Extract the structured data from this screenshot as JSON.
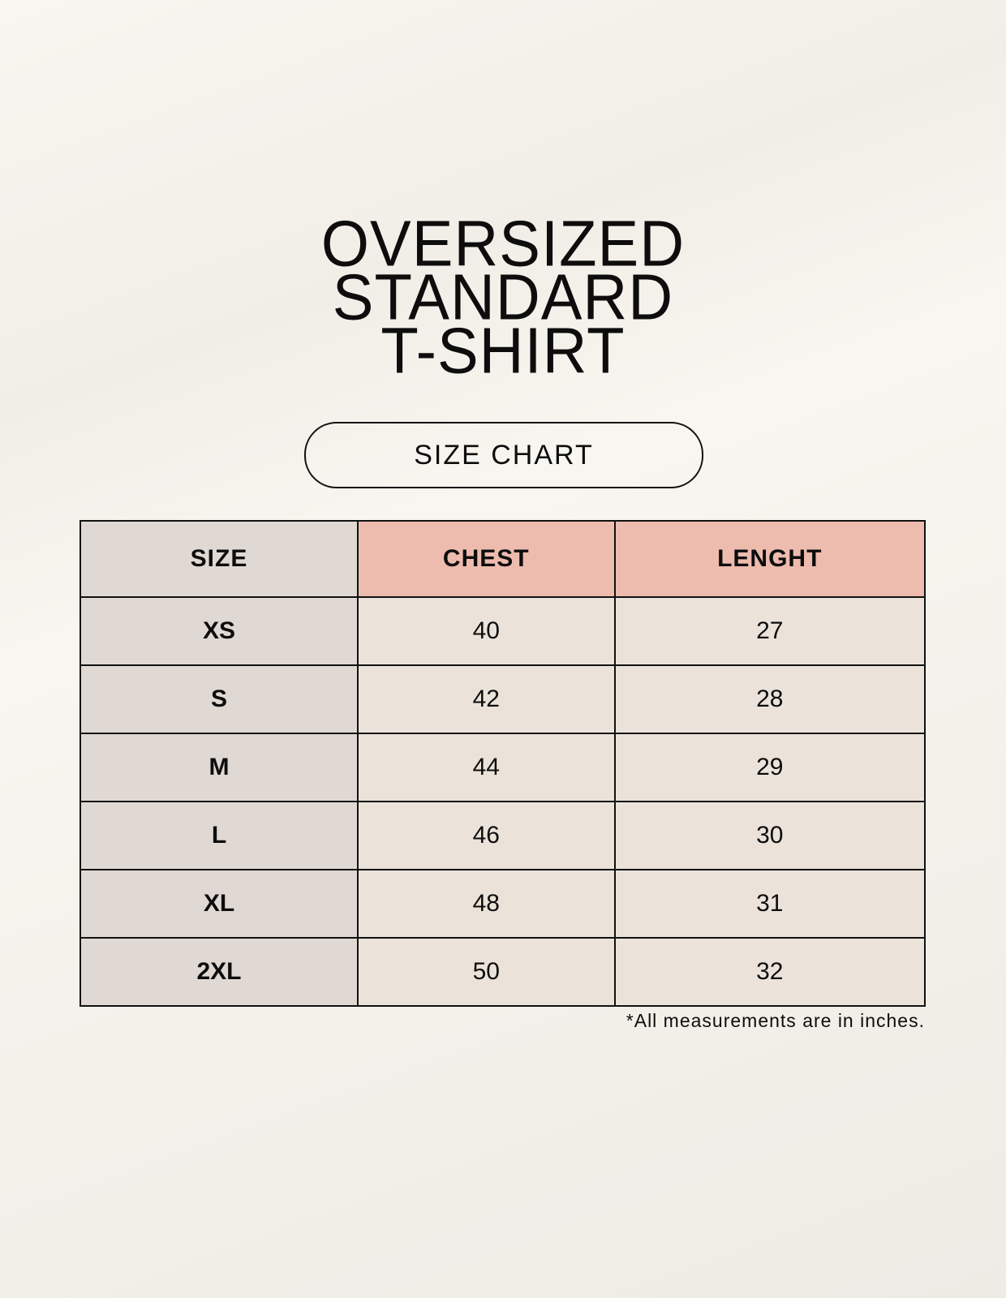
{
  "title": {
    "lines": [
      "OVERSIZED",
      "STANDARD",
      "T-SHIRT"
    ]
  },
  "badge": "SIZE CHART",
  "table": {
    "headers": [
      "SIZE",
      "CHEST",
      "LENGHT"
    ],
    "rows": [
      [
        "XS",
        "40",
        "27"
      ],
      [
        "S",
        "42",
        "28"
      ],
      [
        "M",
        "44",
        "29"
      ],
      [
        "L",
        "46",
        "30"
      ],
      [
        "XL",
        "48",
        "31"
      ],
      [
        "2XL",
        "50",
        "32"
      ]
    ]
  },
  "footnote": "*All measurements are in inches.",
  "colors": {
    "size_column": "#e0d8d2",
    "header_accent": "#edbcae",
    "cell": "#ebe3d9"
  }
}
